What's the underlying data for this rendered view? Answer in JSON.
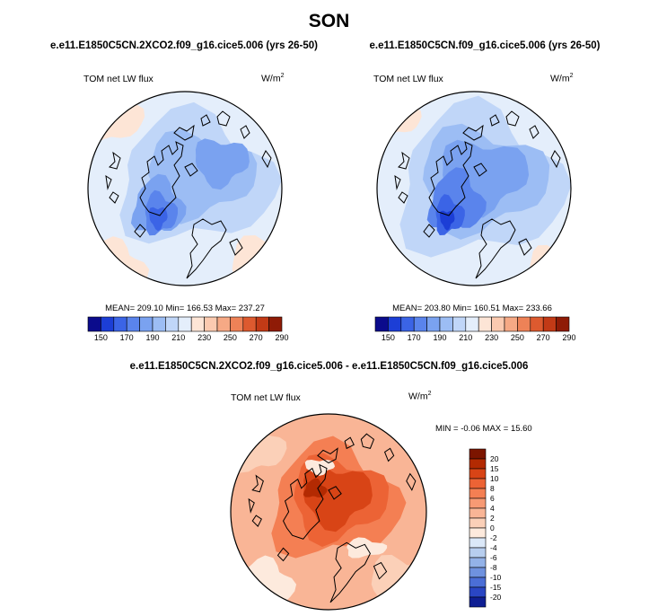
{
  "title": "SON",
  "chart_data": [
    {
      "type": "heatmap",
      "projection": "north-polar-stereographic",
      "title": "e.e11.E1850C5CN.2XCO2.f09_g16.cice5.006 (yrs 26-50)",
      "left_label": "TOM net LW flux",
      "units": "W/m",
      "units_exp": "2",
      "stats": {
        "mean": "209.10",
        "min": "166.53",
        "max": "237.27"
      },
      "stats_text": "MEAN= 209.10   Min= 166.53   Max= 237.27",
      "colorbar": {
        "orientation": "horizontal",
        "levels": [
          "150",
          "170",
          "190",
          "210",
          "230",
          "250",
          "270",
          "290"
        ],
        "colors": [
          "#0b0b8c",
          "#1c3ed6",
          "#3b64e6",
          "#5a84ec",
          "#7aa2f0",
          "#9cbdf4",
          "#c0d6f8",
          "#e4eefb",
          "#fde5d6",
          "#fbcab0",
          "#f6a985",
          "#ee8257",
          "#dd5a2f",
          "#c23a16",
          "#8f1b06"
        ]
      }
    },
    {
      "type": "heatmap",
      "projection": "north-polar-stereographic",
      "title": "e.e11.E1850C5CN.f09_g16.cice5.006 (yrs 26-50)",
      "left_label": "TOM net LW flux",
      "units": "W/m",
      "units_exp": "2",
      "stats": {
        "mean": "203.80",
        "min": "160.51",
        "max": "233.66"
      },
      "stats_text": "MEAN= 203.80   Min= 160.51   Max= 233.66",
      "colorbar": {
        "orientation": "horizontal",
        "levels": [
          "150",
          "170",
          "190",
          "210",
          "230",
          "250",
          "270",
          "290"
        ],
        "colors": [
          "#0b0b8c",
          "#1c3ed6",
          "#3b64e6",
          "#5a84ec",
          "#7aa2f0",
          "#9cbdf4",
          "#c0d6f8",
          "#e4eefb",
          "#fde5d6",
          "#fbcab0",
          "#f6a985",
          "#ee8257",
          "#dd5a2f",
          "#c23a16",
          "#8f1b06"
        ]
      }
    },
    {
      "type": "heatmap",
      "projection": "north-polar-stereographic",
      "title": "e.e11.E1850C5CN.2XCO2.f09_g16.cice5.006 - e.e11.E1850C5CN.f09_g16.cice5.006",
      "left_label": "TOM net LW flux",
      "units": "W/m",
      "units_exp": "2",
      "stats": {
        "min": "-0.06",
        "max": "15.60"
      },
      "stats_text": "MIN =  -0.06 MAX =  15.60",
      "colorbar": {
        "orientation": "vertical",
        "levels": [
          "20",
          "15",
          "10",
          "8",
          "6",
          "4",
          "2",
          "0",
          "-2",
          "-4",
          "-6",
          "-8",
          "-10",
          "-15",
          "-20"
        ],
        "colors": [
          "#7c1500",
          "#b32a02",
          "#d84416",
          "#ec6335",
          "#f47f53",
          "#f79a74",
          "#f9b596",
          "#fbd0b8",
          "#fdeadd",
          "#dbe8f8",
          "#b7ceef",
          "#93b2e8",
          "#6f92df",
          "#4b6ed6",
          "#2a46c4",
          "#0f1f94"
        ]
      }
    }
  ]
}
